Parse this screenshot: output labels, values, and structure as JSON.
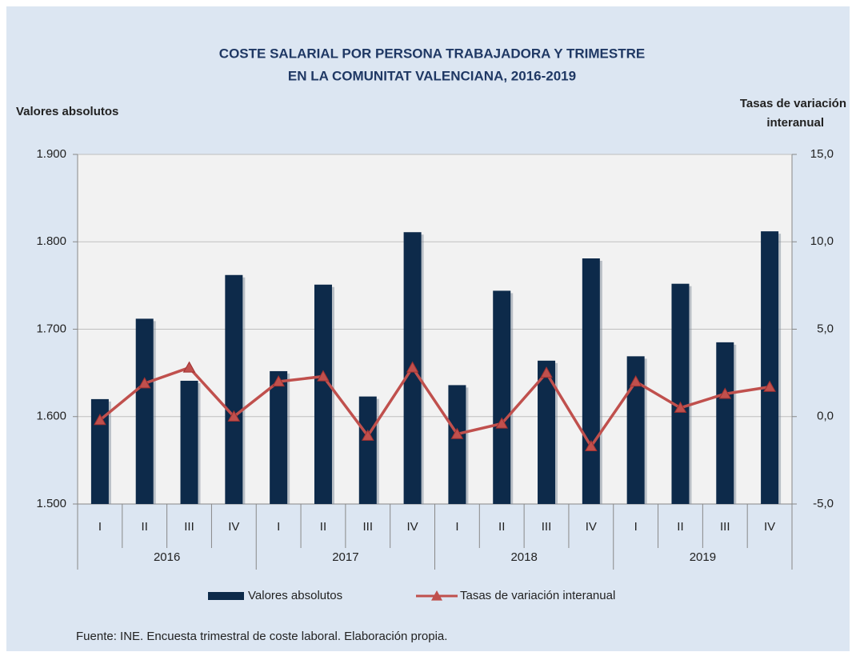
{
  "chart_data": {
    "type": "bar-line",
    "title_lines": [
      "COSTE SALARIAL POR PERSONA TRABAJADORA Y TRIMESTRE",
      "EN LA COMUNITAT VALENCIANA, 2016-2019"
    ],
    "y_label": "Valores absolutos",
    "y2_label_lines": [
      "Tasas de variación",
      "interanual"
    ],
    "categories": [
      "I",
      "II",
      "III",
      "IV",
      "I",
      "II",
      "III",
      "IV",
      "I",
      "II",
      "III",
      "IV",
      "I",
      "II",
      "III",
      "IV"
    ],
    "groups": [
      "2016",
      "2017",
      "2018",
      "2019"
    ],
    "series": [
      {
        "name": "Valores absolutos",
        "type": "bar",
        "color": "#0d2a4a",
        "values": [
          1620,
          1712,
          1641,
          1762,
          1652,
          1751,
          1623,
          1811,
          1636,
          1744,
          1664,
          1781,
          1669,
          1752,
          1685,
          1812
        ]
      },
      {
        "name": "Tasas de variación interanual",
        "type": "line",
        "axis": "y2",
        "color": "#c0504d",
        "values": [
          -0.2,
          1.9,
          2.8,
          0.0,
          2.0,
          2.3,
          -1.1,
          2.8,
          -1.0,
          -0.4,
          2.5,
          -1.7,
          2.0,
          0.5,
          1.3,
          1.7
        ]
      }
    ],
    "ylim": [
      1500,
      1900
    ],
    "yticks": [
      {
        "value": 1500,
        "label": "1.500"
      },
      {
        "value": 1600,
        "label": "1.600"
      },
      {
        "value": 1700,
        "label": "1.700"
      },
      {
        "value": 1800,
        "label": "1.800"
      },
      {
        "value": 1900,
        "label": "1.900"
      }
    ],
    "y2lim": [
      -5,
      15
    ],
    "y2ticks": [
      {
        "value": -5,
        "label": "-5,0"
      },
      {
        "value": 0,
        "label": "0,0"
      },
      {
        "value": 5,
        "label": "5,0"
      },
      {
        "value": 10,
        "label": "10,0"
      },
      {
        "value": 15,
        "label": "15,0"
      }
    ],
    "grid": true,
    "source": "Fuente: INE. Encuesta trimestral de coste laboral. Elaboración propia."
  }
}
